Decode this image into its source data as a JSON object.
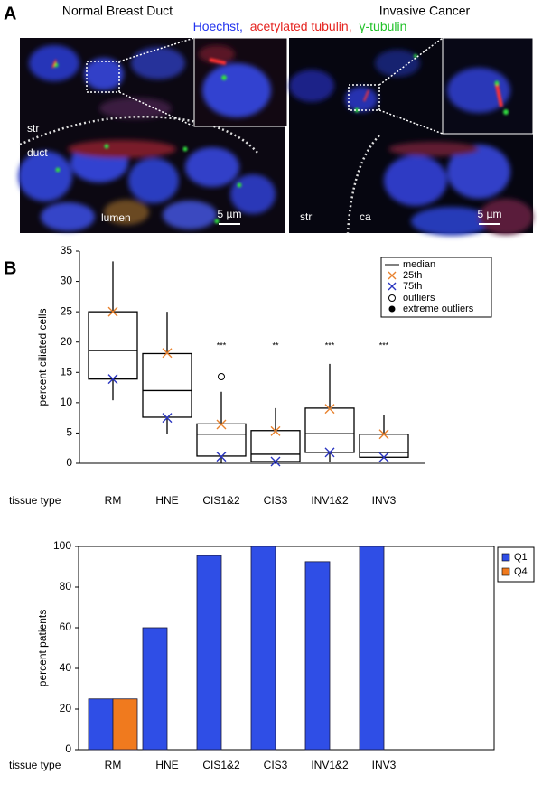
{
  "panel_a": {
    "label": "A",
    "left_title": "Normal Breast Duct",
    "right_title": "Invasive Cancer",
    "stains": [
      {
        "name": "Hoechst,",
        "color": "#2233ee"
      },
      {
        "name": "acetylated tubulin,",
        "color": "#e52420"
      },
      {
        "name": "γ-tubulin",
        "color": "#22c22a"
      }
    ],
    "left_labels": [
      "str",
      "duct",
      "lumen"
    ],
    "right_labels": [
      "str",
      "ca"
    ],
    "scale_bars": [
      "5 µm",
      "5 µm"
    ]
  },
  "panel_b_label": "B",
  "chart_data": [
    {
      "type": "box",
      "ylabel": "percent ciliated cells",
      "xlabel": "tissue type",
      "categories": [
        "RM",
        "HNE",
        "CIS1&2",
        "CIS3",
        "INV1&2",
        "INV3"
      ],
      "min": [
        10.4,
        4.8,
        0,
        0,
        0.2,
        0.8
      ],
      "q1": [
        13.9,
        7.6,
        1.2,
        0.3,
        1.8,
        1
      ],
      "median": [
        18.6,
        12,
        4.8,
        1.5,
        4.9,
        1.8
      ],
      "q3": [
        25,
        18.1,
        6.5,
        5.4,
        9.1,
        4.8
      ],
      "max": [
        33.3,
        25,
        11.8,
        9.1,
        16.4,
        8
      ],
      "median_label": "median",
      "markers": [
        {
          "name": "25th",
          "color": "#e8822e",
          "values": [
            25,
            18.2,
            6.4,
            5.3,
            9,
            4.8
          ]
        },
        {
          "name": "75th",
          "color": "#2a35c0",
          "values": [
            13.9,
            7.5,
            1.1,
            0.3,
            1.8,
            1
          ]
        }
      ],
      "outliers": {
        "name": "outliers",
        "values": [
          null,
          null,
          14.3,
          null,
          null,
          null
        ]
      },
      "extreme_outliers": {
        "name": "extreme outliers"
      },
      "significance": [
        null,
        null,
        "***",
        "**",
        "***",
        "***"
      ],
      "ylim": [
        0,
        35
      ],
      "yticks": [
        0,
        5,
        10,
        15,
        20,
        25,
        30,
        35
      ]
    },
    {
      "type": "bar",
      "ylabel": "percent patients",
      "xlabel": "tissue type",
      "categories": [
        "RM",
        "HNE",
        "CIS1&2",
        "CIS3",
        "INV1&2",
        "INV3"
      ],
      "series": [
        {
          "name": "Q1",
          "color": "#2f4ee6",
          "values": [
            25,
            60,
            95.5,
            100,
            92.5,
            100
          ]
        },
        {
          "name": "Q4",
          "color": "#f07a1e",
          "values": [
            25,
            0,
            0,
            0,
            0,
            0
          ]
        }
      ],
      "ylim": [
        0,
        100
      ],
      "yticks": [
        0,
        20,
        40,
        60,
        80,
        100
      ]
    }
  ]
}
